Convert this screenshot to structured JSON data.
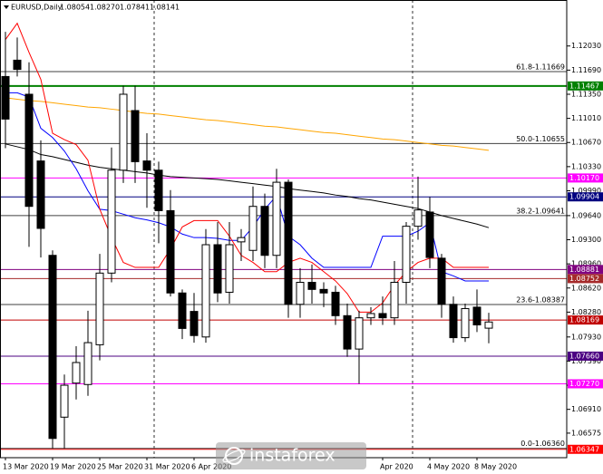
{
  "chart_data": {
    "type": "candlestick",
    "title": "EURUSD,Daily",
    "last_bar_labels": [
      "1.08054",
      "1.08270",
      "1.07841",
      "1.08141"
    ],
    "categories": [
      "13 Mar 2020",
      null,
      null,
      null,
      "19 Mar 2020",
      null,
      null,
      null,
      "25 Mar 2020",
      null,
      null,
      null,
      "31 Mar 2020",
      null,
      null,
      null,
      "6 Apr 2020",
      null,
      null,
      null,
      null,
      null,
      null,
      null,
      null,
      null,
      null,
      null,
      null,
      null,
      null,
      null,
      "Apr 2020",
      null,
      null,
      null,
      "4 May 2020",
      null,
      null,
      null,
      "8 May 2020",
      null
    ],
    "open": [
      1.116,
      1.1183,
      1.1135,
      1.1041,
      1.0908,
      1.068,
      1.0728,
      1.0726,
      1.0782,
      1.0883,
      1.1028,
      1.1112,
      1.1041,
      1.1028,
      1.0971,
      1.0855,
      1.0829,
      1.0793,
      1.0923,
      1.0856,
      1.0927,
      1.0915,
      1.0977,
      1.0908,
      1.1011,
      1.0839,
      1.087,
      1.086,
      1.0856,
      1.0823,
      1.0776,
      1.082,
      1.0826,
      1.082,
      1.087,
      1.0949,
      1.0969,
      1.0904,
      1.0839,
      1.0792,
      1.0835,
      1.08054
    ],
    "high": [
      1.1223,
      1.1215,
      1.118,
      1.107,
      1.0915,
      1.074,
      1.078,
      1.083,
      1.091,
      1.106,
      1.1147,
      1.1147,
      1.108,
      1.104,
      1.1,
      1.086,
      1.0855,
      1.0945,
      1.0955,
      1.0955,
      1.0945,
      1.1005,
      1.0995,
      1.103,
      1.1015,
      1.089,
      1.0895,
      1.087,
      1.0865,
      1.084,
      1.083,
      1.0835,
      1.085,
      1.09,
      1.0955,
      1.1019,
      1.099,
      1.091,
      1.085,
      1.084,
      1.086,
      1.0827
    ],
    "low": [
      1.1059,
      1.116,
      1.092,
      1.0905,
      1.0636,
      1.0636,
      1.0705,
      1.071,
      1.076,
      1.087,
      1.101,
      1.101,
      1.0975,
      1.0925,
      1.085,
      1.079,
      1.0785,
      1.0785,
      1.0842,
      1.084,
      1.09,
      1.09,
      1.089,
      1.089,
      1.082,
      1.082,
      1.084,
      1.0835,
      1.081,
      1.0765,
      1.0727,
      1.081,
      1.081,
      1.081,
      1.084,
      1.093,
      1.089,
      1.082,
      1.0785,
      1.0786,
      1.08,
      1.07841
    ],
    "close": [
      1.11,
      1.117,
      1.0977,
      1.0946,
      1.065,
      1.0725,
      1.0757,
      1.0785,
      1.0883,
      1.1028,
      1.1135,
      1.104,
      1.1028,
      1.0971,
      1.0855,
      1.0805,
      1.0795,
      1.0923,
      1.0855,
      1.0923,
      1.0933,
      1.0977,
      1.0908,
      1.1011,
      1.0839,
      1.087,
      1.086,
      1.0855,
      1.0823,
      1.0776,
      1.082,
      1.0826,
      1.082,
      1.087,
      1.0949,
      1.0972,
      1.0905,
      1.0839,
      1.0792,
      1.0833,
      1.081,
      1.08141
    ],
    "up_color": "#ffffff",
    "down_color": "#000000",
    "series": [
      {
        "color": "#ffa500",
        "values": [
          1.113,
          1.1128,
          1.1126,
          1.1125,
          1.1123,
          1.1121,
          1.1119,
          1.1117,
          1.1116,
          1.1114,
          1.1112,
          1.111,
          1.1108,
          1.1107,
          1.1105,
          1.1103,
          1.1101,
          1.1099,
          1.1098,
          1.1096,
          1.1094,
          1.1092,
          1.109,
          1.1089,
          1.1087,
          1.1085,
          1.1083,
          1.1081,
          1.108,
          1.1078,
          1.1076,
          1.1074,
          1.1072,
          1.1071,
          1.1069,
          1.1067,
          1.1065,
          1.1063,
          1.1062,
          1.106,
          1.1058,
          1.1056
        ]
      },
      {
        "color": "#000000",
        "values": [
          1.1065,
          1.1061,
          1.1057,
          1.105,
          1.1047,
          1.1043,
          1.1039,
          1.1035,
          1.1032,
          1.103,
          1.1028,
          1.1026,
          1.1024,
          1.1021,
          1.1019,
          1.1018,
          1.1017,
          1.1016,
          1.1015,
          1.1013,
          1.1011,
          1.1009,
          1.1007,
          1.1005,
          1.1002,
          1.1,
          1.0998,
          1.0996,
          1.0993,
          1.0991,
          1.0988,
          1.0986,
          1.0983,
          1.098,
          1.0977,
          1.0974,
          1.0969,
          1.0964,
          1.096,
          1.0956,
          1.0952,
          1.0947
        ]
      },
      {
        "color": "#0000ff",
        "values": [
          1.1137,
          1.1137,
          1.1131,
          1.1087,
          1.1074,
          1.1055,
          1.103,
          1.0999,
          1.0973,
          1.0971,
          1.0966,
          1.0961,
          1.0958,
          1.0954,
          1.0948,
          1.0938,
          1.0933,
          1.0933,
          1.0932,
          1.0929,
          1.0929,
          1.0948,
          1.0973,
          1.0992,
          1.0935,
          1.0923,
          1.0904,
          1.0891,
          1.0891,
          1.0891,
          1.0891,
          1.0891,
          1.0935,
          1.0935,
          1.0935,
          1.0942,
          1.0954,
          1.0885,
          1.0879,
          1.0872,
          1.0872,
          1.0872
        ]
      },
      {
        "color": "#ff0000",
        "values": [
          1.1212,
          1.1235,
          1.1194,
          1.1156,
          1.108,
          1.1071,
          1.1064,
          1.1042,
          1.0973,
          1.0933,
          1.0898,
          1.0891,
          1.0891,
          1.0891,
          1.0917,
          1.0948,
          1.0957,
          1.0957,
          1.0957,
          1.0935,
          1.0908,
          1.0898,
          1.0885,
          1.0885,
          1.0898,
          1.0904,
          1.0898,
          1.0885,
          1.0872,
          1.0854,
          1.0828,
          1.0828,
          1.0841,
          1.0866,
          1.0885,
          1.0898,
          1.0904,
          1.0904,
          1.0891,
          1.0891,
          1.0891,
          1.0891
        ]
      }
    ],
    "ylim": [
      1.06229,
      1.12678
    ],
    "yticks": [
      {
        "value": 1.1203,
        "label": "1.12030"
      },
      {
        "value": 1.1169,
        "label": "1.11690"
      },
      {
        "value": 1.1135,
        "label": "1.11350"
      },
      {
        "value": 1.1101,
        "label": "1.11010"
      },
      {
        "value": 1.1067,
        "label": "1.10670"
      },
      {
        "value": 1.1033,
        "label": "1.10330"
      },
      {
        "value": 1.0999,
        "label": "1.09990"
      },
      {
        "value": 1.0964,
        "label": "1.09640"
      },
      {
        "value": 1.093,
        "label": "1.09300"
      },
      {
        "value": 1.0896,
        "label": "1.08960"
      },
      {
        "value": 1.0862,
        "label": "1.08620"
      },
      {
        "value": 1.0828,
        "label": "1.08280"
      },
      {
        "value": 1.0793,
        "label": "1.07930"
      },
      {
        "value": 1.0759,
        "label": "1.07590"
      },
      {
        "value": 1.0725,
        "label": "1.07250"
      },
      {
        "value": 1.0691,
        "label": "1.06910"
      },
      1.06575
    ],
    "fib_levels": [
      {
        "value": 1.11669,
        "label": "61.8-1.11669"
      },
      {
        "value": 1.10655,
        "label": "50.0-1.10655"
      },
      {
        "value": 1.09641,
        "label": "38.2-1.09641"
      },
      {
        "value": 1.08387,
        "label": "23.6-1.08387"
      },
      {
        "value": 1.0636,
        "label": "0.0-1.06360"
      }
    ],
    "fib_color": "#404040",
    "levels": [
      {
        "value": 1.11467,
        "color": "#008000"
      },
      {
        "value": {
          "value": 1.1017,
          "label": "1.10170"
        },
        "color": "#ff00ff"
      },
      {
        "value": 1.09904,
        "color": "#000080"
      },
      {
        "value": 1.08881,
        "color": "#800080"
      },
      {
        "value": 1.08752,
        "color": "#a52a2a"
      },
      {
        "value": 1.08169,
        "color": "#c00000"
      },
      {
        "value": {
          "value": 1.0766,
          "label": "1.07660"
        },
        "color": "#4b0082"
      },
      {
        "value": {
          "value": 1.0727,
          "label": "1.07270"
        },
        "color": "#ff00ff"
      },
      {
        "value": 1.06347,
        "color": "#ff0000"
      }
    ],
    "grid": false,
    "watermark": "instaforex"
  }
}
